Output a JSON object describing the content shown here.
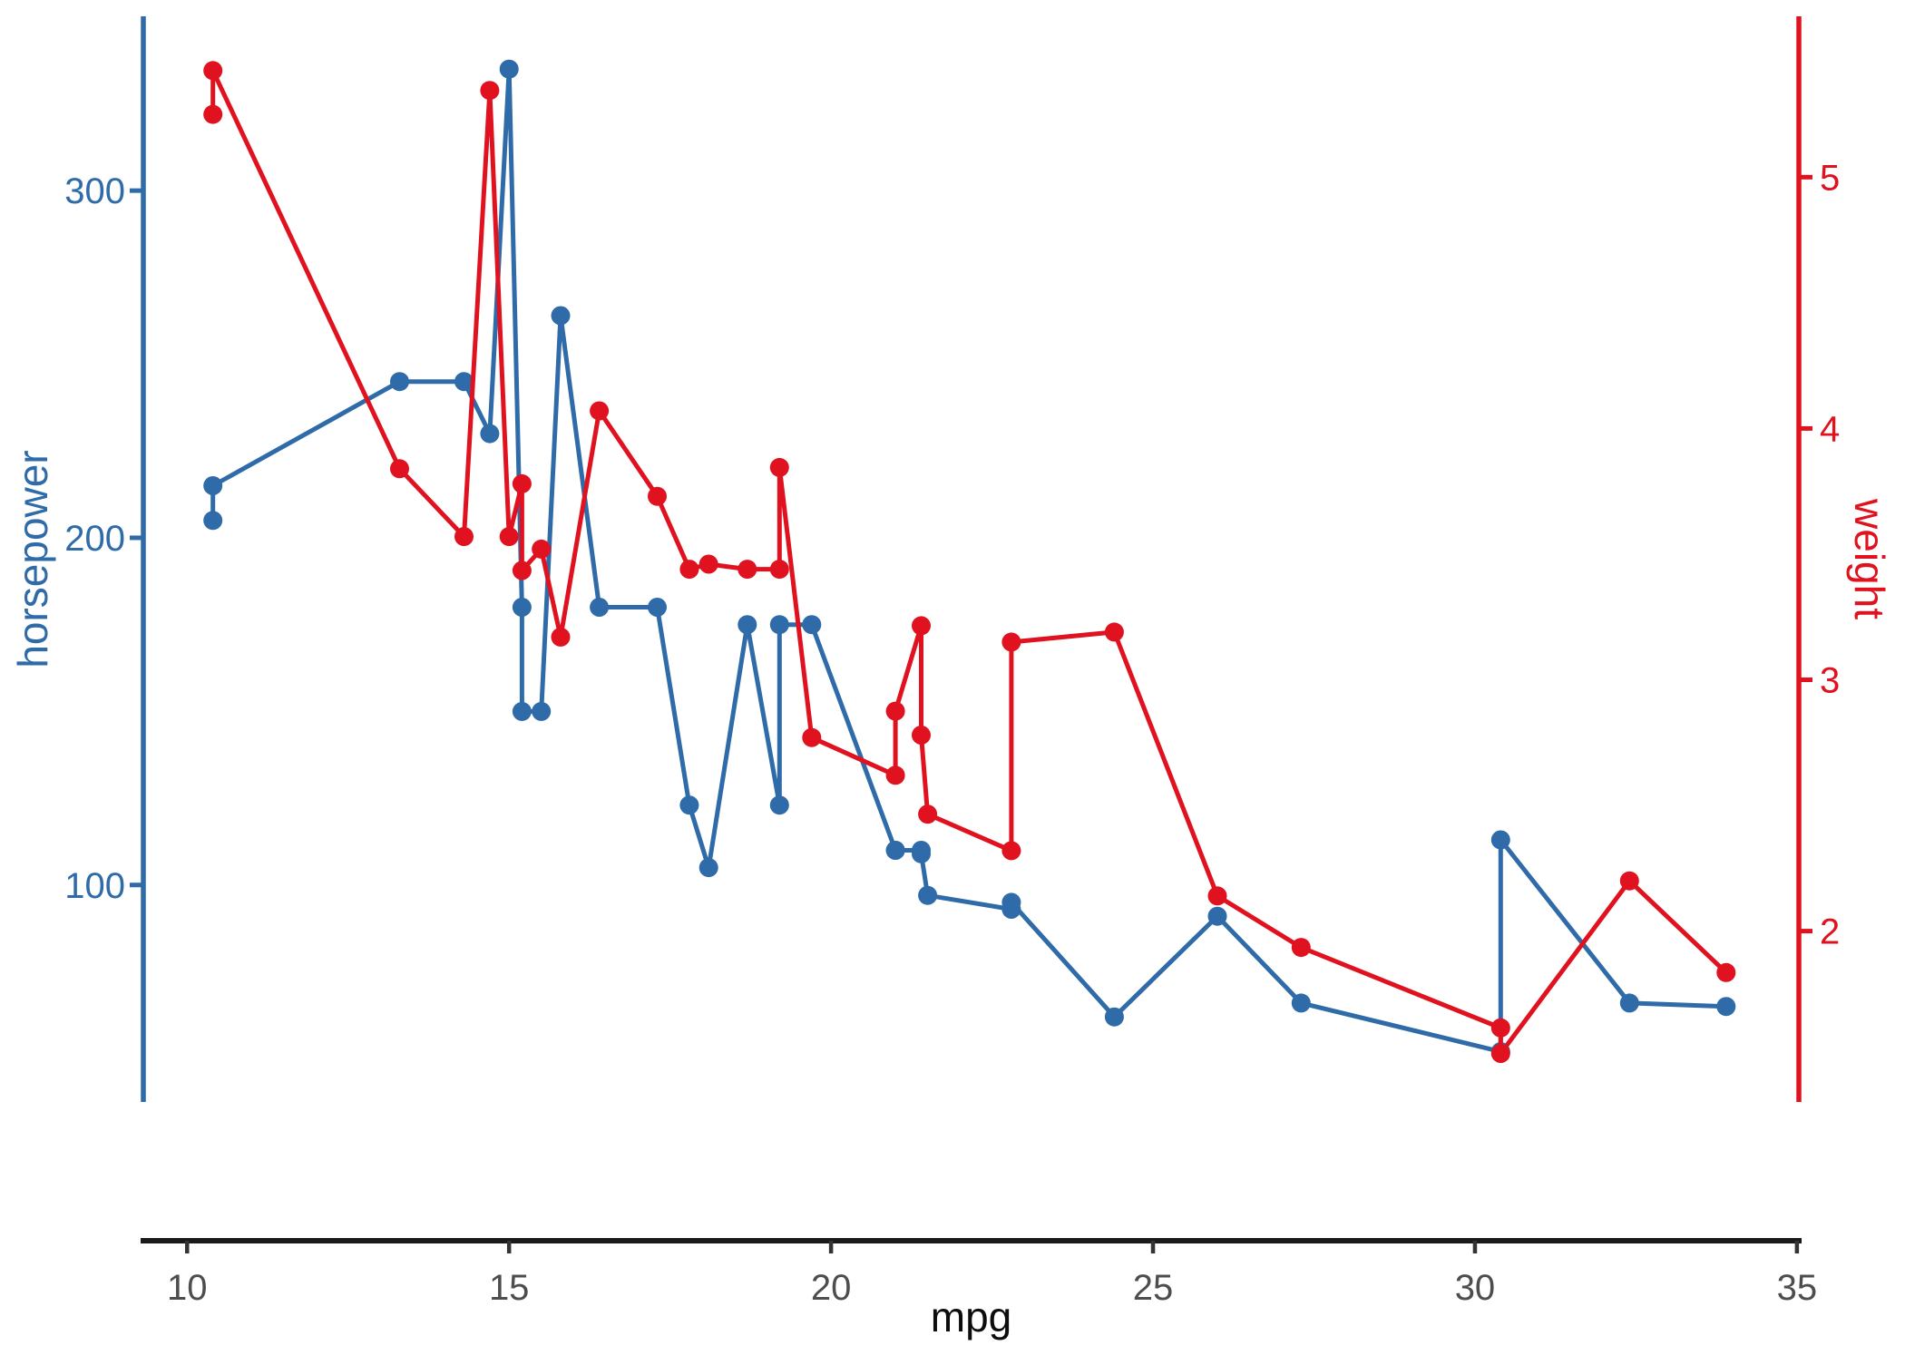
{
  "chart_data": {
    "type": "line",
    "title": "",
    "grid": false,
    "legend": false,
    "xlabel": "mpg",
    "x_axis": {
      "label": "mpg",
      "ticks": [
        10,
        15,
        20,
        25,
        30,
        35
      ],
      "lim": [
        9.32,
        35.03
      ],
      "line_color": "#1a1a1a",
      "tick_color": "#333333",
      "text_color": "#4d4d4d",
      "title_color": "#0d0d0d"
    },
    "left_axis": {
      "label": "horsepower",
      "ticks": [
        100,
        200,
        300
      ],
      "lim": [
        37.5,
        350.2
      ],
      "color": "#2E6BA8"
    },
    "right_axis": {
      "label": "weight",
      "ticks": [
        2,
        3,
        4,
        5
      ],
      "lim": [
        1.32,
        5.64
      ],
      "color": "#E0121F"
    },
    "series": [
      {
        "name": "horsepower",
        "axis": "left",
        "color": "#2E6BA8",
        "points": [
          {
            "mpg": 10.4,
            "value": 205
          },
          {
            "mpg": 10.4,
            "value": 215
          },
          {
            "mpg": 13.3,
            "value": 245
          },
          {
            "mpg": 14.3,
            "value": 245
          },
          {
            "mpg": 14.7,
            "value": 230
          },
          {
            "mpg": 15.0,
            "value": 335
          },
          {
            "mpg": 15.2,
            "value": 180
          },
          {
            "mpg": 15.2,
            "value": 150
          },
          {
            "mpg": 15.5,
            "value": 150
          },
          {
            "mpg": 15.8,
            "value": 264
          },
          {
            "mpg": 16.4,
            "value": 180
          },
          {
            "mpg": 17.3,
            "value": 180
          },
          {
            "mpg": 17.8,
            "value": 123
          },
          {
            "mpg": 18.1,
            "value": 105
          },
          {
            "mpg": 18.7,
            "value": 175
          },
          {
            "mpg": 19.2,
            "value": 123
          },
          {
            "mpg": 19.2,
            "value": 175
          },
          {
            "mpg": 19.7,
            "value": 175
          },
          {
            "mpg": 21.0,
            "value": 110
          },
          {
            "mpg": 21.0,
            "value": 110
          },
          {
            "mpg": 21.4,
            "value": 110
          },
          {
            "mpg": 21.4,
            "value": 109
          },
          {
            "mpg": 21.5,
            "value": 97
          },
          {
            "mpg": 22.8,
            "value": 93
          },
          {
            "mpg": 22.8,
            "value": 95
          },
          {
            "mpg": 24.4,
            "value": 62
          },
          {
            "mpg": 26.0,
            "value": 91
          },
          {
            "mpg": 27.3,
            "value": 66
          },
          {
            "mpg": 30.4,
            "value": 52
          },
          {
            "mpg": 30.4,
            "value": 113
          },
          {
            "mpg": 32.4,
            "value": 66
          },
          {
            "mpg": 33.9,
            "value": 65
          }
        ]
      },
      {
        "name": "weight",
        "axis": "right",
        "color": "#E0121F",
        "points": [
          {
            "mpg": 10.4,
            "value": 5.25
          },
          {
            "mpg": 10.4,
            "value": 5.424
          },
          {
            "mpg": 13.3,
            "value": 3.84
          },
          {
            "mpg": 14.3,
            "value": 3.57
          },
          {
            "mpg": 14.7,
            "value": 5.345
          },
          {
            "mpg": 15.0,
            "value": 3.57
          },
          {
            "mpg": 15.2,
            "value": 3.78
          },
          {
            "mpg": 15.2,
            "value": 3.435
          },
          {
            "mpg": 15.5,
            "value": 3.52
          },
          {
            "mpg": 15.8,
            "value": 3.17
          },
          {
            "mpg": 16.4,
            "value": 4.07
          },
          {
            "mpg": 17.3,
            "value": 3.73
          },
          {
            "mpg": 17.8,
            "value": 3.44
          },
          {
            "mpg": 18.1,
            "value": 3.46
          },
          {
            "mpg": 18.7,
            "value": 3.44
          },
          {
            "mpg": 19.2,
            "value": 3.44
          },
          {
            "mpg": 19.2,
            "value": 3.845
          },
          {
            "mpg": 19.7,
            "value": 2.77
          },
          {
            "mpg": 21.0,
            "value": 2.62
          },
          {
            "mpg": 21.0,
            "value": 2.875
          },
          {
            "mpg": 21.4,
            "value": 3.215
          },
          {
            "mpg": 21.4,
            "value": 2.78
          },
          {
            "mpg": 21.5,
            "value": 2.465
          },
          {
            "mpg": 22.8,
            "value": 2.32
          },
          {
            "mpg": 22.8,
            "value": 3.15
          },
          {
            "mpg": 24.4,
            "value": 3.19
          },
          {
            "mpg": 26.0,
            "value": 2.14
          },
          {
            "mpg": 27.3,
            "value": 1.935
          },
          {
            "mpg": 30.4,
            "value": 1.615
          },
          {
            "mpg": 30.4,
            "value": 1.513
          },
          {
            "mpg": 32.4,
            "value": 2.2
          },
          {
            "mpg": 33.9,
            "value": 1.835
          }
        ]
      }
    ]
  }
}
